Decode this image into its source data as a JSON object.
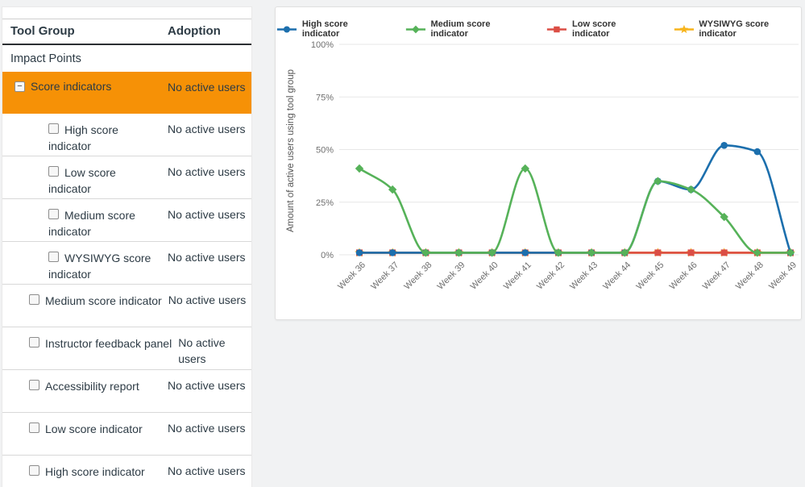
{
  "table": {
    "headers": {
      "tool_group": "Tool Group",
      "adoption": "Adoption"
    },
    "group_label": "Impact Points",
    "collapse_icon": "−",
    "selected_color": "#F69106",
    "rows": [
      {
        "label": "Score indicators",
        "adoption": "No active users",
        "type": "parent",
        "selected": true,
        "expanded": true
      },
      {
        "label": "High score indicator",
        "adoption": "No active users",
        "type": "child"
      },
      {
        "label": "Low score indicator",
        "adoption": "No active users",
        "type": "child"
      },
      {
        "label": "Medium score indicator",
        "adoption": "No active users",
        "type": "child"
      },
      {
        "label": "WYSIWYG score indicator",
        "adoption": "No active users",
        "type": "child"
      },
      {
        "label": "Medium score indicator",
        "adoption": "No active users",
        "type": "tool"
      },
      {
        "label": "Instructor feedback panel",
        "adoption": "No active users",
        "type": "tool"
      },
      {
        "label": "Accessibility report",
        "adoption": "No active users",
        "type": "tool"
      },
      {
        "label": "Low score indicator",
        "adoption": "No active users",
        "type": "tool"
      },
      {
        "label": "High score indicator",
        "adoption": "No active users",
        "type": "tool"
      }
    ]
  },
  "chart_data": {
    "type": "line",
    "title": "",
    "xlabel": "",
    "ylabel": "Amount of active users using tool group",
    "ylim": [
      0,
      100
    ],
    "yticks": [
      {
        "value": 0,
        "label": "0%"
      },
      {
        "value": 25,
        "label": "25%"
      },
      {
        "value": 50,
        "label": "50%"
      },
      {
        "value": 75,
        "label": "75%"
      },
      {
        "value": 100,
        "label": "100%"
      }
    ],
    "grid": true,
    "legend_position": "top",
    "x": [
      "Week 36",
      "Week 37",
      "Week 38",
      "Week 39",
      "Week 40",
      "Week 41",
      "Week 42",
      "Week 43",
      "Week 44",
      "Week 45",
      "Week 46",
      "Week 47",
      "Week 48",
      "Week 49"
    ],
    "series": [
      {
        "name": "High score indicator",
        "color": "#1C6FAD",
        "marker": "circle",
        "values": [
          1,
          1,
          1,
          1,
          1,
          1,
          1,
          1,
          1,
          35,
          31,
          52,
          49,
          1
        ]
      },
      {
        "name": "Medium score indicator",
        "color": "#56B259",
        "marker": "diamond",
        "values": [
          41,
          31,
          1,
          1,
          1,
          41,
          1,
          1,
          1,
          35,
          31,
          18,
          1,
          1
        ]
      },
      {
        "name": "Low score indicator",
        "color": "#DB4E45",
        "marker": "square",
        "values": [
          1,
          1,
          1,
          1,
          1,
          1,
          1,
          1,
          1,
          1,
          1,
          1,
          1,
          1
        ]
      },
      {
        "name": "WYSIWYG score indicator",
        "color": "#F7B41C",
        "marker": "star",
        "values": [
          1,
          1,
          1,
          1,
          1,
          1,
          1,
          1,
          1,
          1,
          1,
          1,
          1,
          1
        ]
      }
    ],
    "draw_order": [
      3,
      2,
      0,
      1
    ]
  }
}
